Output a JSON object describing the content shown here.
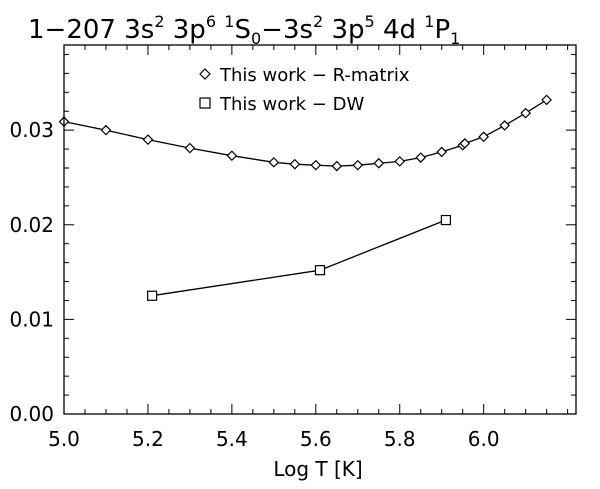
{
  "chart_data": {
    "type": "line",
    "title": {
      "prefix": "1−207 3s",
      "sup1": "2",
      "t2": " 3p",
      "sup2": "6",
      "t3": " ",
      "sup3": "1",
      "t4": "S",
      "sub1": "0",
      "t5": "−3s",
      "sup4": "2",
      "t6": " 3p",
      "sup5": "5",
      "t7": " 4d ",
      "sup6": "1",
      "t8": "P",
      "sub2": "1"
    },
    "xlabel": "Log T [K]",
    "ylabel": "",
    "xlim": [
      5.0,
      6.22
    ],
    "ylim": [
      0.0,
      0.039
    ],
    "x_ticks": [
      {
        "value": 5.0,
        "label": "5.0"
      },
      {
        "value": 5.2,
        "label": "5.2"
      },
      {
        "value": 5.4,
        "label": "5.4"
      },
      {
        "value": 5.6,
        "label": "5.6"
      },
      {
        "value": 5.8,
        "label": "5.8"
      },
      {
        "value": 6.0,
        "label": "6.0"
      }
    ],
    "y_ticks": [
      {
        "value": 0.0,
        "label": "0.00"
      },
      {
        "value": 0.01,
        "label": "0.01"
      },
      {
        "value": 0.02,
        "label": "0.02"
      },
      {
        "value": 0.03,
        "label": "0.03"
      }
    ],
    "x_minor_step": 0.05,
    "y_minor_step": 0.002,
    "grid": false,
    "legend_placement": "top-center",
    "series": [
      {
        "name": "This work − R-matrix",
        "marker": "diamond",
        "x": [
          5.0,
          5.1,
          5.2,
          5.3,
          5.4,
          5.5,
          5.55,
          5.6,
          5.65,
          5.7,
          5.75,
          5.8,
          5.85,
          5.9,
          5.95,
          5.955,
          6.0,
          6.05,
          6.1,
          6.15
        ],
        "y": [
          0.0309,
          0.03,
          0.029,
          0.0281,
          0.0273,
          0.0266,
          0.0264,
          0.0263,
          0.0262,
          0.0263,
          0.0265,
          0.0267,
          0.0271,
          0.0277,
          0.0284,
          0.0286,
          0.0293,
          0.0305,
          0.0318,
          0.0332
        ]
      },
      {
        "name": "This work − DW",
        "marker": "square",
        "x": [
          5.21,
          5.61,
          5.91
        ],
        "y": [
          0.0125,
          0.0152,
          0.0205
        ]
      }
    ]
  }
}
